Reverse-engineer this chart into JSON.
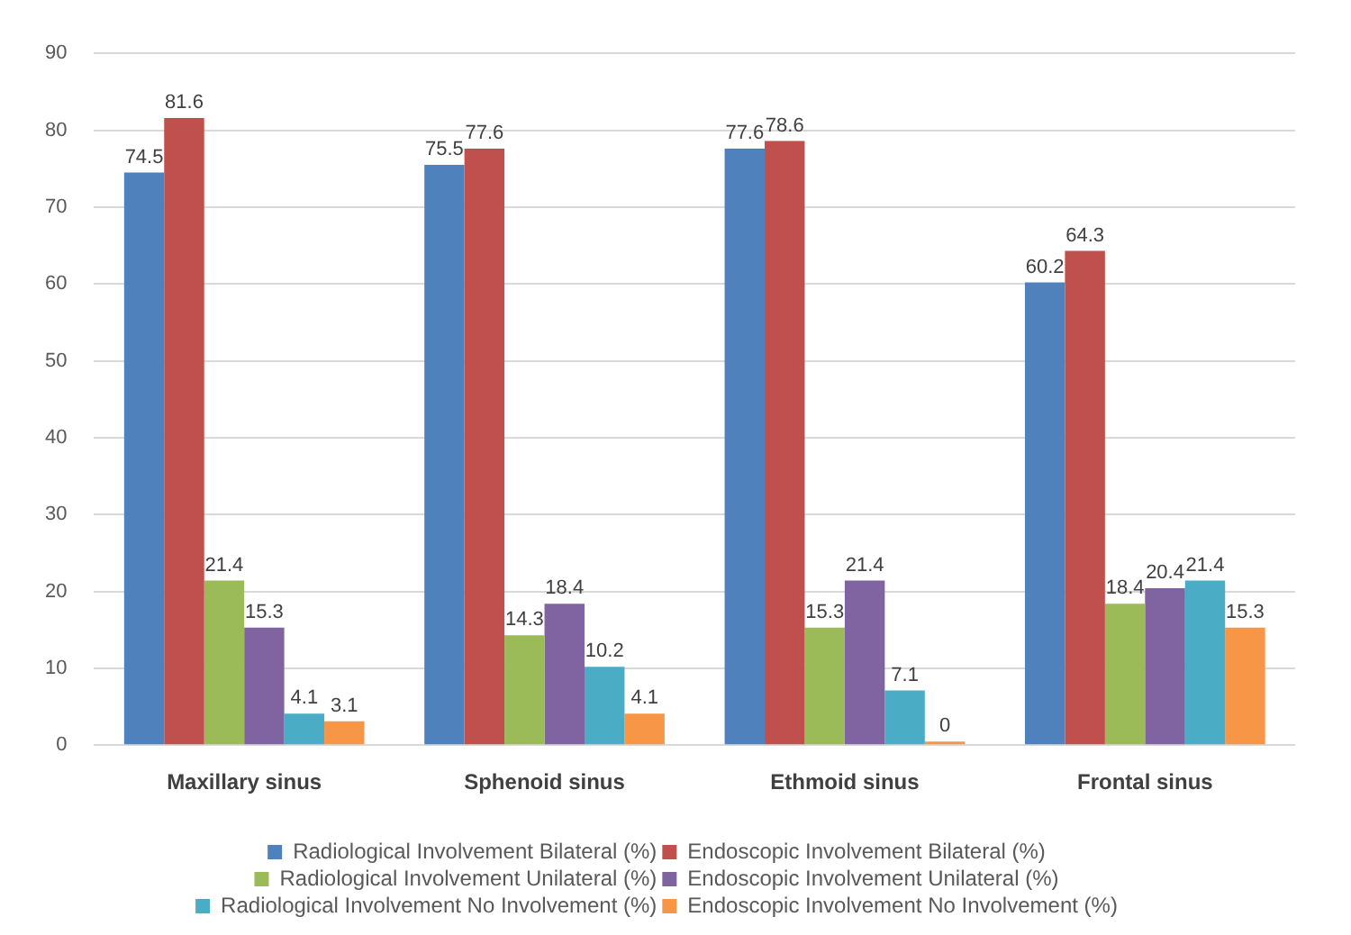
{
  "chart_data": {
    "type": "bar",
    "categories": [
      "Maxillary sinus",
      "Sphenoid sinus",
      "Ethmoid sinus",
      "Frontal sinus"
    ],
    "series": [
      {
        "name": "Radiological Involvement Bilateral (%)",
        "color": "#4f81bd",
        "values": [
          74.5,
          75.5,
          77.6,
          60.2
        ]
      },
      {
        "name": "Endoscopic Involvement Bilateral (%)",
        "color": "#c0504d",
        "values": [
          81.6,
          77.6,
          78.6,
          64.3
        ]
      },
      {
        "name": "Radiological Involvement Unilateral (%)",
        "color": "#9bbb59",
        "values": [
          21.4,
          14.3,
          15.3,
          18.4
        ]
      },
      {
        "name": "Endoscopic Involvement Unilateral (%)",
        "color": "#8064a2",
        "values": [
          15.3,
          18.4,
          21.4,
          20.4
        ]
      },
      {
        "name": "Radiological Involvement No Involvement (%)",
        "color": "#4bacc6",
        "values": [
          4.1,
          10.2,
          7.1,
          21.4
        ]
      },
      {
        "name": "Endoscopic Involvement No Involvement (%)",
        "color": "#f79646",
        "values": [
          3.1,
          4.1,
          0,
          15.3
        ]
      }
    ],
    "ylim": [
      0,
      90
    ],
    "yticks": [
      0,
      10,
      20,
      30,
      40,
      50,
      60,
      70,
      80,
      90
    ],
    "grid": "y",
    "legend": "bottom",
    "data_labels": true
  }
}
